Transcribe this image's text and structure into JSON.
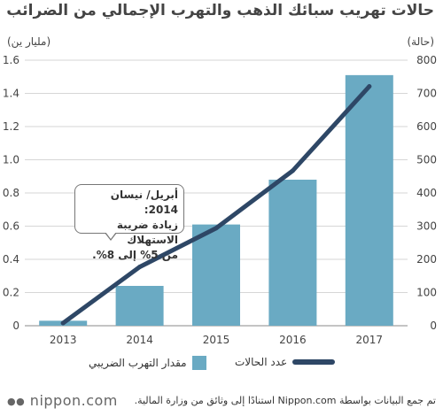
{
  "title": "حالات تهريب سبائك الذهب والتهرب الإجمالي من الضرائب",
  "units": {
    "left": "(مليار ين)",
    "right": "(حالة)"
  },
  "chart_data": {
    "type": "bar+line",
    "categories": [
      "2013",
      "2014",
      "2015",
      "2016",
      "2017"
    ],
    "series": [
      {
        "name": "مقدار التهرب الضريبي",
        "type": "bar",
        "axis": "left",
        "color": "#6aaac3",
        "values": [
          0.03,
          0.24,
          0.61,
          0.88,
          1.51
        ]
      },
      {
        "name": "عدد الحالات",
        "type": "line",
        "axis": "right",
        "color": "#2e4766",
        "values": [
          8,
          177,
          294,
          467,
          721
        ]
      }
    ],
    "ylim_left": [
      0,
      1.6
    ],
    "yticks_left": [
      "0",
      "0.2",
      "0.4",
      "0.6",
      "0.8",
      "1.0",
      "1.2",
      "1.4",
      "1.6"
    ],
    "ylim_right": [
      0,
      800
    ],
    "yticks_right": [
      "0",
      "100",
      "200",
      "300",
      "400",
      "500",
      "600",
      "700",
      "800"
    ],
    "grid": true,
    "legend_position": "bottom",
    "annotation": {
      "category": "2014",
      "lines": [
        "أبريل/ نيسان 2014:",
        "زيادة ضريبة الاستهلاك",
        "من 5% إلى 8%."
      ]
    }
  },
  "footer": {
    "logo": "nippon.com",
    "source": "تم جمع البيانات بواسطة Nippon.com استنادًا إلى وثائق من وزارة المالية."
  }
}
